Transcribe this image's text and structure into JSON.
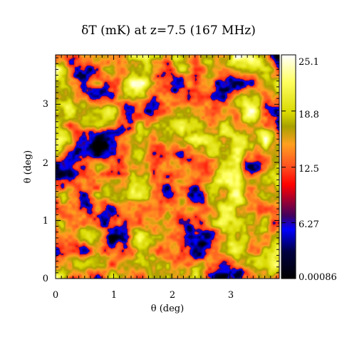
{
  "chart_data": {
    "type": "heatmap",
    "title": "δT (mK) at z=7.5 (167 MHz)",
    "xlabel": "θ (deg)",
    "ylabel": "θ (deg)",
    "xlim": [
      0,
      3.85
    ],
    "ylim": [
      0,
      3.85
    ],
    "xticks": [
      0,
      1,
      2,
      3
    ],
    "yticks": [
      0,
      1,
      2,
      3
    ],
    "colorbar": {
      "min": 0.00086,
      "max": 25.1,
      "tick_labels": [
        "25.1",
        "18.8",
        "12.5",
        "6.27",
        "0.00086"
      ],
      "tick_values": [
        25.1,
        18.8,
        12.5,
        6.27,
        0.00086
      ],
      "colormap": [
        "#000000",
        "#0000ff",
        "#ff0000",
        "#ff9020",
        "#a8a800",
        "#ffff40",
        "#ffffff"
      ]
    },
    "field_description": "random ionization map: mostly orange/yellow with dark (near 0 mK) holes",
    "seed": 7
  }
}
